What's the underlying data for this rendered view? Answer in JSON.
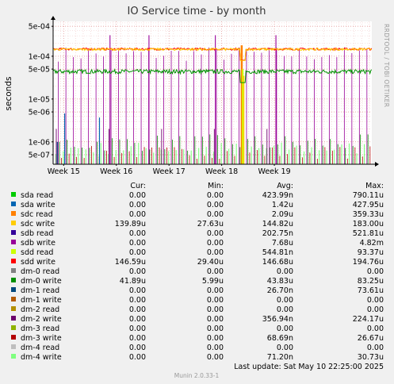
{
  "chart_data": {
    "type": "line",
    "title": "IO Service time - by month",
    "ylabel": "seconds",
    "yscale": "log",
    "ylim": [
      3e-07,
      0.00065
    ],
    "ytick_values": [
      5e-07,
      1e-06,
      5e-06,
      1e-05,
      5e-05,
      0.0001,
      0.0005
    ],
    "ytick_labels": [
      "5e-07",
      "1e-06",
      "5e-06",
      "1e-05",
      "5e-05",
      "1e-04",
      "5e-04"
    ],
    "xlim": [
      0,
      6.05
    ],
    "xtick_values": [
      0.2,
      1.2,
      2.2,
      3.2,
      4.2
    ],
    "xtick_labels": [
      "Week 15",
      "Week 16",
      "Week 17",
      "Week 18",
      "Week 19"
    ],
    "grid": true,
    "side_label": "RRDTOOL / TOBI OETIKER",
    "legend_headers": [
      "Cur:",
      "Min:",
      "Avg:",
      "Max:"
    ],
    "series": [
      {
        "name": "sda read",
        "color": "#00cc00",
        "cur": "0.00",
        "min": "0.00",
        "avg": "423.99n",
        "max": "790.11u"
      },
      {
        "name": "sda write",
        "color": "#0066b3",
        "cur": "0.00",
        "min": "0.00",
        "avg": "1.42u",
        "max": "427.95u"
      },
      {
        "name": "sdc read",
        "color": "#ff8000",
        "cur": "0.00",
        "min": "0.00",
        "avg": "2.09u",
        "max": "359.33u"
      },
      {
        "name": "sdc write",
        "color": "#ffcc00",
        "cur": "139.89u",
        "min": "27.63u",
        "avg": "144.82u",
        "max": "183.00u"
      },
      {
        "name": "sdb read",
        "color": "#330099",
        "cur": "0.00",
        "min": "0.00",
        "avg": "202.75n",
        "max": "521.81u"
      },
      {
        "name": "sdb write",
        "color": "#990099",
        "cur": "0.00",
        "min": "0.00",
        "avg": "7.68u",
        "max": "4.82m"
      },
      {
        "name": "sdd read",
        "color": "#ccff00",
        "cur": "0.00",
        "min": "0.00",
        "avg": "544.81n",
        "max": "93.37u"
      },
      {
        "name": "sdd write",
        "color": "#ff0000",
        "cur": "146.59u",
        "min": "29.40u",
        "avg": "146.68u",
        "max": "194.76u"
      },
      {
        "name": "dm-0 read",
        "color": "#808080",
        "cur": "0.00",
        "min": "0.00",
        "avg": "0.00",
        "max": "0.00"
      },
      {
        "name": "dm-0 write",
        "color": "#008f00",
        "cur": "41.89u",
        "min": "5.99u",
        "avg": "43.83u",
        "max": "83.25u"
      },
      {
        "name": "dm-1 read",
        "color": "#00487d",
        "cur": "0.00",
        "min": "0.00",
        "avg": "26.70n",
        "max": "73.61u"
      },
      {
        "name": "dm-1 write",
        "color": "#b35a00",
        "cur": "0.00",
        "min": "0.00",
        "avg": "0.00",
        "max": "0.00"
      },
      {
        "name": "dm-2 read",
        "color": "#b38f00",
        "cur": "0.00",
        "min": "0.00",
        "avg": "0.00",
        "max": "0.00"
      },
      {
        "name": "dm-2 write",
        "color": "#6b006b",
        "cur": "0.00",
        "min": "0.00",
        "avg": "356.94n",
        "max": "224.17u"
      },
      {
        "name": "dm-3 read",
        "color": "#8fb300",
        "cur": "0.00",
        "min": "0.00",
        "avg": "0.00",
        "max": "0.00"
      },
      {
        "name": "dm-3 write",
        "color": "#b30000",
        "cur": "0.00",
        "min": "0.00",
        "avg": "68.69n",
        "max": "26.67u"
      },
      {
        "name": "dm-4 read",
        "color": "#bebebe",
        "cur": "0.00",
        "min": "0.00",
        "avg": "0.00",
        "max": "0.00"
      },
      {
        "name": "dm-4 write",
        "color": "#80ff80",
        "cur": "0.00",
        "min": "0.00",
        "avg": "71.20n",
        "max": "30.73u"
      }
    ],
    "footer": "Last update:  Sat May 10 22:25:00 2025",
    "credit": "Munin 2.0.33-1"
  }
}
